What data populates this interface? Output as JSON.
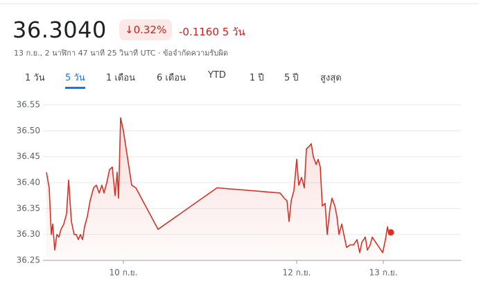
{
  "header": {
    "price": "36.3040",
    "change_pct": "0.32%",
    "change_abs": "-0.1160",
    "period": "5 วัน",
    "timestamp": "13 ก.ย., 2 นาฬิกา 47 นาที 25 วินาที UTC · ข้อจำกัดความรับผิด"
  },
  "tabs": [
    "1 วัน",
    "5 วัน",
    "1 เดือน",
    "6 เดือน",
    "YTD",
    "1 ปี",
    "5 ปี",
    "สูงสุด"
  ],
  "chart_data": {
    "type": "line",
    "color": "#d93025",
    "x": [
      9.112,
      9.144,
      9.168,
      9.184,
      9.208,
      9.232,
      9.256,
      9.28,
      9.312,
      9.344,
      9.368,
      9.4,
      9.432,
      9.456,
      9.48,
      9.504,
      9.528,
      9.552,
      9.584,
      9.616,
      9.656,
      9.688,
      9.72,
      9.752,
      9.776,
      9.808,
      9.84,
      9.872,
      9.904,
      9.928,
      9.944,
      9.968,
      10,
      10.096,
      10.144,
      10.4,
      11.08,
      11.808,
      11.856,
      11.888,
      11.912,
      11.936,
      11.968,
      12,
      12.024,
      12.056,
      12.088,
      12.112,
      12.144,
      12.168,
      12.192,
      12.224,
      12.248,
      12.272,
      12.296,
      12.328,
      12.352,
      12.384,
      12.408,
      12.44,
      12.464,
      12.488,
      12.52,
      12.544,
      12.576,
      12.616,
      12.656,
      12.696,
      12.728,
      12.752,
      12.792,
      12.816,
      12.848,
      12.872,
      12.912,
      12.952,
      12.992,
      13.024,
      13.048,
      13.064,
      13.088
    ],
    "values": [
      36.42,
      36.39,
      36.3,
      36.32,
      36.27,
      36.3,
      36.295,
      36.31,
      36.32,
      36.34,
      36.405,
      36.325,
      36.3,
      36.3,
      36.29,
      36.3,
      36.29,
      36.315,
      36.335,
      36.365,
      36.39,
      36.395,
      36.38,
      36.395,
      36.38,
      36.4,
      36.425,
      36.43,
      36.375,
      36.42,
      36.37,
      36.525,
      36.5,
      36.395,
      36.39,
      36.31,
      36.39,
      36.38,
      36.37,
      36.365,
      36.325,
      36.365,
      36.385,
      36.445,
      36.395,
      36.41,
      36.39,
      36.465,
      36.47,
      36.475,
      36.45,
      36.435,
      36.445,
      36.43,
      36.355,
      36.36,
      36.3,
      36.35,
      36.37,
      36.355,
      36.335,
      36.3,
      36.32,
      36.3,
      36.275,
      36.28,
      36.28,
      36.29,
      36.265,
      36.285,
      36.295,
      36.27,
      36.28,
      36.295,
      36.285,
      36.275,
      36.265,
      36.29,
      36.315,
      36.3,
      36.304
    ],
    "xlim": [
      9.072,
      13.896
    ],
    "xticks": [
      {
        "value": 10,
        "label": "10 ก.ย."
      },
      {
        "value": 12,
        "label": "12 ก.ย."
      },
      {
        "value": 13,
        "label": "13 ก.ย."
      }
    ],
    "ylim": [
      36.25,
      36.55
    ],
    "yticks": [
      36.25,
      {
        "value": 36.3,
        "label": "36.30"
      },
      36.35,
      {
        "value": 36.4,
        "label": "36.40"
      },
      36.45,
      {
        "value": 36.5,
        "label": "36.50"
      },
      36.55
    ],
    "grid": true
  }
}
